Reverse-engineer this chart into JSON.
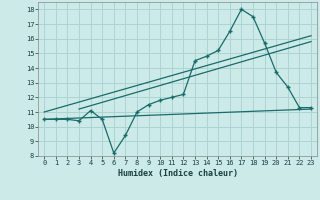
{
  "xlabel": "Humidex (Indice chaleur)",
  "xlim": [
    -0.5,
    23.5
  ],
  "ylim": [
    8,
    18.5
  ],
  "xticks": [
    0,
    1,
    2,
    3,
    4,
    5,
    6,
    7,
    8,
    9,
    10,
    11,
    12,
    13,
    14,
    15,
    16,
    17,
    18,
    19,
    20,
    21,
    22,
    23
  ],
  "yticks": [
    8,
    9,
    10,
    11,
    12,
    13,
    14,
    15,
    16,
    17,
    18
  ],
  "bg_color": "#cceae7",
  "line_color": "#1a6b6b",
  "grid_color": "#add4d0",
  "main_x": [
    0,
    1,
    2,
    3,
    4,
    5,
    6,
    7,
    8,
    9,
    10,
    11,
    12,
    13,
    14,
    15,
    16,
    17,
    18,
    19,
    20,
    21,
    22,
    23
  ],
  "main_y": [
    10.5,
    10.5,
    10.5,
    10.4,
    11.1,
    10.5,
    8.2,
    9.4,
    11.0,
    11.5,
    11.8,
    12.0,
    12.2,
    14.5,
    14.8,
    15.2,
    16.5,
    18.0,
    17.5,
    15.7,
    13.7,
    12.7,
    11.3,
    11.3
  ],
  "trend1_x": [
    0,
    23
  ],
  "trend1_y": [
    11.0,
    16.2
  ],
  "trend2_x": [
    3,
    23
  ],
  "trend2_y": [
    11.2,
    15.8
  ],
  "trend3_x": [
    0,
    23
  ],
  "trend3_y": [
    10.5,
    11.2
  ]
}
